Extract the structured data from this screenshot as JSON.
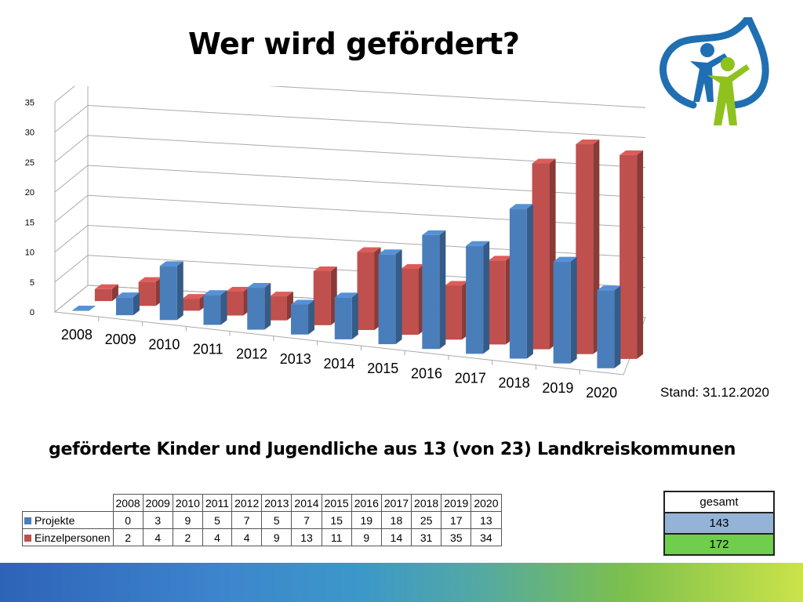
{
  "slide": {
    "title": "Wer wird gefördert?",
    "stand": "Stand: 31.12.2020",
    "subtitle": "geförderte Kinder und Jugendliche aus 13 (von 23) Landkreiskommunen"
  },
  "chart_data": {
    "type": "bar",
    "style": "3d-clustered-column",
    "categories": [
      "2008",
      "2009",
      "2010",
      "2011",
      "2012",
      "2013",
      "2014",
      "2015",
      "2016",
      "2017",
      "2018",
      "2019",
      "2020"
    ],
    "series": [
      {
        "name": "Projekte",
        "color": "#4a7ebb",
        "values": [
          0,
          3,
          9,
          5,
          7,
          5,
          7,
          15,
          19,
          18,
          25,
          17,
          13
        ]
      },
      {
        "name": "Einzelpersonen",
        "color": "#c0504d",
        "values": [
          2,
          4,
          2,
          4,
          4,
          9,
          13,
          11,
          9,
          14,
          31,
          35,
          34
        ]
      }
    ],
    "ylim": [
      0,
      35
    ],
    "yticks": [
      0,
      5,
      10,
      15,
      20,
      25,
      30,
      35
    ],
    "grid": true,
    "xlabel": "",
    "ylabel": ""
  },
  "table": {
    "years": [
      "2008",
      "2009",
      "2010",
      "2011",
      "2012",
      "2013",
      "2014",
      "2015",
      "2016",
      "2017",
      "2018",
      "2019",
      "2020"
    ],
    "rows": [
      {
        "label": "Projekte",
        "color": "#4a7ebb",
        "values": [
          "0",
          "3",
          "9",
          "5",
          "7",
          "5",
          "7",
          "15",
          "19",
          "18",
          "25",
          "17",
          "13"
        ]
      },
      {
        "label": "Einzelpersonen",
        "color": "#c0504d",
        "values": [
          "2",
          "4",
          "2",
          "4",
          "4",
          "9",
          "13",
          "11",
          "9",
          "14",
          "31",
          "35",
          "34"
        ]
      }
    ],
    "totals": {
      "header": "gesamt",
      "projekte": "143",
      "einzelpersonen": "172",
      "projekte_color": "#95b3d7",
      "einzelpersonen_color": "#6fce4c"
    }
  },
  "logo": {
    "icon": "children-leaf-logo",
    "blue": "#1f6fb2",
    "green": "#8fc21f"
  }
}
